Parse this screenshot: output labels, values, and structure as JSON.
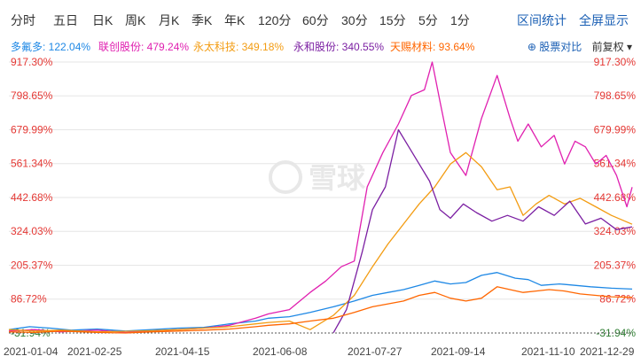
{
  "tabs": [
    "分时",
    "五日",
    "日K",
    "周K",
    "月K",
    "季K",
    "年K",
    "120分",
    "60分",
    "30分",
    "15分",
    "5分",
    "1分"
  ],
  "tools": {
    "interval_stats": "区间统计",
    "fullscreen": "全屏显示"
  },
  "legend": [
    {
      "text": "多氟多: 122.04%",
      "color": "#1e88e5"
    },
    {
      "text": "联创股份: 479.24%",
      "color": "#e020b0"
    },
    {
      "text": "永太科技: 349.18%",
      "color": "#f39c12"
    },
    {
      "text": "永和股份: 340.55%",
      "color": "#7b1fa2"
    },
    {
      "text": "天赐材料: 93.64%",
      "color": "#ff6600"
    }
  ],
  "compare_label": "股票对比",
  "adjust_label": "前复权",
  "watermark": "雪球",
  "colors": {
    "red": "#e53935",
    "green": "#2e7d32",
    "grid": "#e6e6e6"
  },
  "chart_data": {
    "type": "line",
    "y_ticks": [
      "917.30%",
      "798.65%",
      "679.99%",
      "561.34%",
      "442.68%",
      "324.03%",
      "205.37%",
      "86.72%",
      "-31.94%"
    ],
    "y_tick_values": [
      917.3,
      798.65,
      679.99,
      561.34,
      442.68,
      324.03,
      205.37,
      86.72,
      -31.94
    ],
    "ylim": [
      -31.94,
      917.3
    ],
    "x_ticks": [
      "2021-01-04",
      "2021-02-25",
      "2021-04-15",
      "2021-06-08",
      "2021-07-27",
      "2021-09-14",
      "2021-11-10",
      "2021-12-29"
    ],
    "x_tick_values": [
      0,
      34,
      65,
      100,
      133,
      166,
      205,
      240
    ],
    "xlim": [
      0,
      240
    ],
    "baseline": -31.94,
    "series": [
      {
        "name": "多氟多",
        "color": "#1e88e5",
        "x": [
          0,
          8,
          16,
          24,
          34,
          45,
          55,
          65,
          75,
          85,
          95,
          100,
          108,
          116,
          125,
          133,
          140,
          146,
          152,
          158,
          164,
          170,
          176,
          182,
          188,
          195,
          200,
          205,
          212,
          218,
          224,
          232,
          240
        ],
        "y": [
          -20,
          -10,
          -15,
          -22,
          -18,
          -25,
          -20,
          -15,
          -12,
          0,
          10,
          20,
          25,
          40,
          60,
          80,
          100,
          110,
          120,
          135,
          150,
          140,
          145,
          170,
          180,
          160,
          155,
          135,
          140,
          135,
          130,
          125,
          122
        ]
      },
      {
        "name": "联创股份",
        "color": "#e020b0",
        "x": [
          0,
          10,
          20,
          34,
          45,
          55,
          65,
          75,
          85,
          95,
          100,
          108,
          116,
          122,
          128,
          133,
          138,
          144,
          150,
          155,
          160,
          163,
          166,
          170,
          176,
          182,
          188,
          193,
          196,
          200,
          205,
          210,
          214,
          218,
          222,
          226,
          230,
          234,
          238,
          240
        ],
        "y": [
          -25,
          -20,
          -28,
          -22,
          -30,
          -25,
          -20,
          -15,
          -5,
          20,
          35,
          50,
          110,
          150,
          200,
          220,
          480,
          600,
          700,
          800,
          820,
          917,
          780,
          600,
          520,
          720,
          870,
          720,
          640,
          700,
          620,
          660,
          560,
          640,
          620,
          560,
          590,
          520,
          410,
          479
        ]
      },
      {
        "name": "永太科技",
        "color": "#f39c12",
        "x": [
          0,
          10,
          20,
          34,
          45,
          55,
          65,
          75,
          85,
          95,
          100,
          108,
          116,
          125,
          133,
          140,
          146,
          152,
          158,
          164,
          170,
          176,
          182,
          188,
          193,
          198,
          203,
          208,
          214,
          220,
          226,
          232,
          240
        ],
        "y": [
          -20,
          -25,
          -22,
          -28,
          -26,
          -24,
          -20,
          -15,
          -10,
          0,
          5,
          10,
          -20,
          30,
          100,
          200,
          280,
          350,
          420,
          480,
          560,
          600,
          550,
          470,
          480,
          380,
          420,
          450,
          420,
          440,
          410,
          380,
          349
        ]
      },
      {
        "name": "永和股份",
        "color": "#7b1fa2",
        "x": [
          125,
          130,
          136,
          140,
          145,
          150,
          154,
          158,
          162,
          166,
          170,
          175,
          180,
          186,
          192,
          198,
          204,
          210,
          216,
          222,
          228,
          234,
          240
        ],
        "y": [
          -31,
          50,
          250,
          400,
          480,
          680,
          620,
          560,
          500,
          400,
          370,
          420,
          390,
          360,
          380,
          360,
          410,
          380,
          430,
          350,
          370,
          330,
          340
        ]
      },
      {
        "name": "天赐材料",
        "color": "#ff6600",
        "x": [
          0,
          10,
          20,
          34,
          45,
          55,
          65,
          75,
          85,
          95,
          100,
          108,
          116,
          125,
          133,
          140,
          146,
          152,
          158,
          164,
          170,
          176,
          182,
          188,
          193,
          198,
          203,
          208,
          214,
          220,
          226,
          232,
          240
        ],
        "y": [
          -28,
          -30,
          -25,
          -30,
          -32,
          -28,
          -25,
          -22,
          -18,
          -10,
          -5,
          0,
          10,
          20,
          40,
          60,
          70,
          80,
          100,
          110,
          90,
          80,
          90,
          130,
          120,
          110,
          115,
          120,
          115,
          105,
          100,
          95,
          93
        ]
      }
    ]
  }
}
